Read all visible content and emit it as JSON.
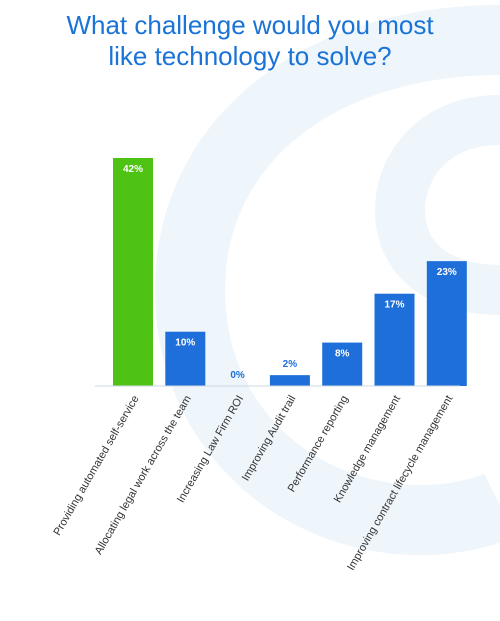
{
  "title_line1": "What challenge would you most",
  "title_line2": "like technology to solve?",
  "colors": {
    "title": "#1a73d6",
    "highlight_bar": "#4fc313",
    "bar": "#1e6fd9",
    "zero_label": "#1e6fd9",
    "background_swirl": "#eef5fb"
  },
  "chart_data": {
    "type": "bar",
    "categories": [
      "Providing automated self-service",
      "Allocating legal work across the team",
      "Increasing Law Firm ROI",
      "Improving Audit trail",
      "Performance reporting",
      "Knowledge management",
      "Improving contract lifecycle management"
    ],
    "values": [
      42,
      10,
      0,
      2,
      8,
      17,
      23
    ],
    "value_labels": [
      "42%",
      "10%",
      "0%",
      "2%",
      "8%",
      "17%",
      "23%"
    ],
    "highlight_index": 0,
    "unit": "%",
    "ylim": [
      0,
      42
    ],
    "grid": false,
    "legend": "none"
  }
}
